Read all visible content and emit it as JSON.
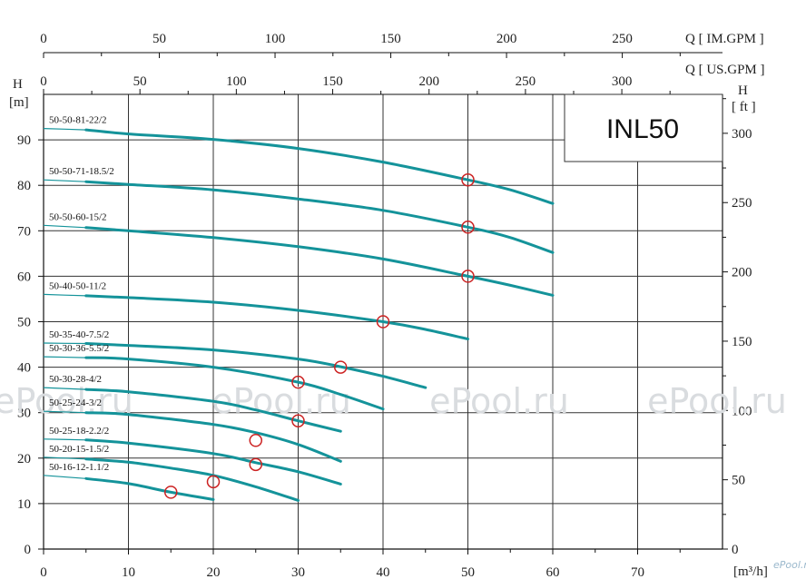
{
  "model": "INL50",
  "watermark": "ePool.ru",
  "logo_text": "ePool.ru",
  "axis_text": {
    "q_im": "Q [ IM.GPM ]",
    "q_us": "Q [ US.GPM ]",
    "h_m_letter": "H",
    "h_m_unit": "[m]",
    "h_ft_letter": "H",
    "h_ft_unit": "[ ft ]",
    "q_m3h": "[m³/h]"
  },
  "colors": {
    "curve": "#14939a",
    "marker": "#cc2222",
    "grid": "#333333"
  },
  "chart_data": {
    "type": "line",
    "x_unit": "m³/h",
    "y_unit": "m",
    "xlim": [
      0,
      80
    ],
    "ylim": [
      0,
      100
    ],
    "x_ticks": [
      0,
      10,
      20,
      30,
      40,
      50,
      60,
      70
    ],
    "y_ticks": [
      0,
      10,
      20,
      30,
      40,
      50,
      60,
      70,
      80,
      90
    ],
    "im_gpm_ticks": [
      0,
      50,
      100,
      150,
      200,
      250
    ],
    "us_gpm_ticks": [
      0,
      50,
      100,
      150,
      200,
      250,
      300
    ],
    "ft_ticks": [
      0,
      50,
      100,
      150,
      200,
      250,
      300
    ],
    "grid": true,
    "series": [
      {
        "name": "50-50-81-22/2",
        "x": [
          0,
          5,
          10,
          20,
          30,
          40,
          50,
          55,
          60
        ],
        "y": [
          92.5,
          92.2,
          91.3,
          90.1,
          88.1,
          85.1,
          81.2,
          79.0,
          76.0
        ],
        "duty": [
          50,
          81.2
        ]
      },
      {
        "name": "50-50-71-18.5/2",
        "x": [
          0,
          5,
          10,
          20,
          30,
          40,
          50,
          55,
          60
        ],
        "y": [
          81.2,
          80.8,
          80.2,
          79.0,
          77.0,
          74.5,
          70.8,
          68.5,
          65.2
        ],
        "duty": [
          50,
          70.8
        ]
      },
      {
        "name": "50-50-60-15/2",
        "x": [
          0,
          5,
          10,
          20,
          30,
          40,
          50,
          55,
          60
        ],
        "y": [
          71.2,
          70.7,
          70.0,
          68.5,
          66.5,
          63.8,
          60.0,
          58.0,
          55.8
        ],
        "duty": [
          50,
          60.0
        ]
      },
      {
        "name": "50-40-50-11/2",
        "x": [
          0,
          5,
          10,
          20,
          30,
          40,
          45,
          50
        ],
        "y": [
          56.0,
          55.7,
          55.3,
          54.3,
          52.5,
          50.0,
          48.3,
          46.2
        ],
        "duty": [
          40,
          50.0
        ]
      },
      {
        "name": "50-35-40-7.5/2",
        "x": [
          0,
          5,
          10,
          20,
          30,
          35,
          40,
          45
        ],
        "y": [
          45.3,
          45.2,
          44.8,
          43.8,
          41.8,
          40.1,
          38.0,
          35.5
        ],
        "duty": [
          35,
          40.0
        ]
      },
      {
        "name": "50-30-36-5.5/2",
        "x": [
          0,
          5,
          10,
          20,
          30,
          35,
          40
        ],
        "y": [
          42.3,
          42.1,
          41.8,
          40.0,
          36.7,
          34.0,
          30.8
        ],
        "duty": [
          30,
          36.7
        ]
      },
      {
        "name": "50-30-28-4/2",
        "x": [
          0,
          5,
          10,
          20,
          25,
          30,
          35
        ],
        "y": [
          35.5,
          35.1,
          34.6,
          32.5,
          30.6,
          28.2,
          25.9
        ],
        "duty": [
          30,
          28.2
        ]
      },
      {
        "name": "50-25-24-3/2",
        "x": [
          0,
          5,
          10,
          20,
          25,
          30,
          35
        ],
        "y": [
          30.3,
          30.0,
          29.6,
          27.4,
          25.6,
          23.0,
          19.3
        ],
        "duty": [
          25,
          23.9
        ]
      },
      {
        "name": "50-25-18-2.2/2",
        "x": [
          0,
          5,
          10,
          20,
          25,
          30,
          35
        ],
        "y": [
          24.2,
          24.0,
          23.3,
          21.0,
          19.0,
          17.0,
          14.3
        ],
        "duty": [
          25,
          18.6
        ]
      },
      {
        "name": "50-20-15-1.5/2",
        "x": [
          0,
          5,
          10,
          15,
          20,
          25,
          30
        ],
        "y": [
          20.2,
          19.8,
          19.1,
          17.8,
          16.2,
          13.7,
          10.7
        ],
        "duty": [
          20,
          14.8
        ]
      },
      {
        "name": "50-16-12-1.1/2",
        "x": [
          0,
          5,
          10,
          15,
          20
        ],
        "y": [
          16.2,
          15.5,
          14.4,
          12.5,
          10.9
        ],
        "duty": [
          15,
          12.5
        ]
      }
    ]
  }
}
